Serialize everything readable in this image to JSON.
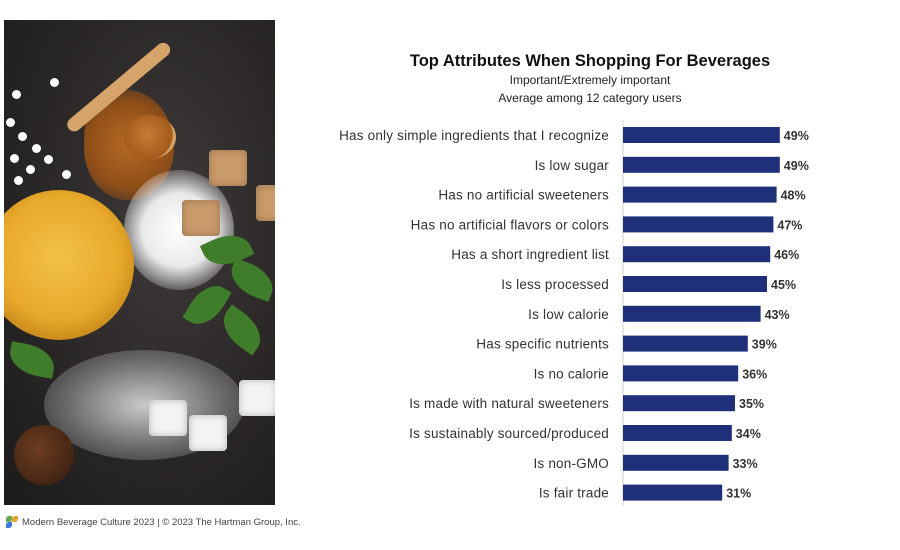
{
  "chart_data": {
    "type": "bar",
    "orientation": "horizontal",
    "title": "Top Attributes When Shopping For Beverages",
    "subtitle_lines": [
      "Important/Extremely important",
      "Average among 12 category users"
    ],
    "categories": [
      "Has only simple ingredients that I recognize",
      "Is low sugar",
      "Has no artificial sweeteners",
      "Has no artificial flavors or colors",
      "Has a short ingredient list",
      "Is less processed",
      "Is low calorie",
      "Has specific nutrients",
      "Is no calorie",
      "Is made with natural sweeteners",
      "Is sustainably sourced/produced",
      "Is non-GMO",
      "Is fair trade"
    ],
    "values": [
      49,
      49,
      48,
      47,
      46,
      45,
      43,
      39,
      36,
      35,
      34,
      33,
      31
    ],
    "value_labels": [
      "49%",
      "49%",
      "48%",
      "47%",
      "46%",
      "45%",
      "43%",
      "39%",
      "36%",
      "35%",
      "34%",
      "33%",
      "31%"
    ],
    "xlim": [
      0,
      60
    ],
    "grid": false,
    "bar_color": "#1f2f7a"
  },
  "footer": {
    "text": "Modern Beverage Culture 2023  |  © 2023 The Hartman Group, Inc."
  }
}
